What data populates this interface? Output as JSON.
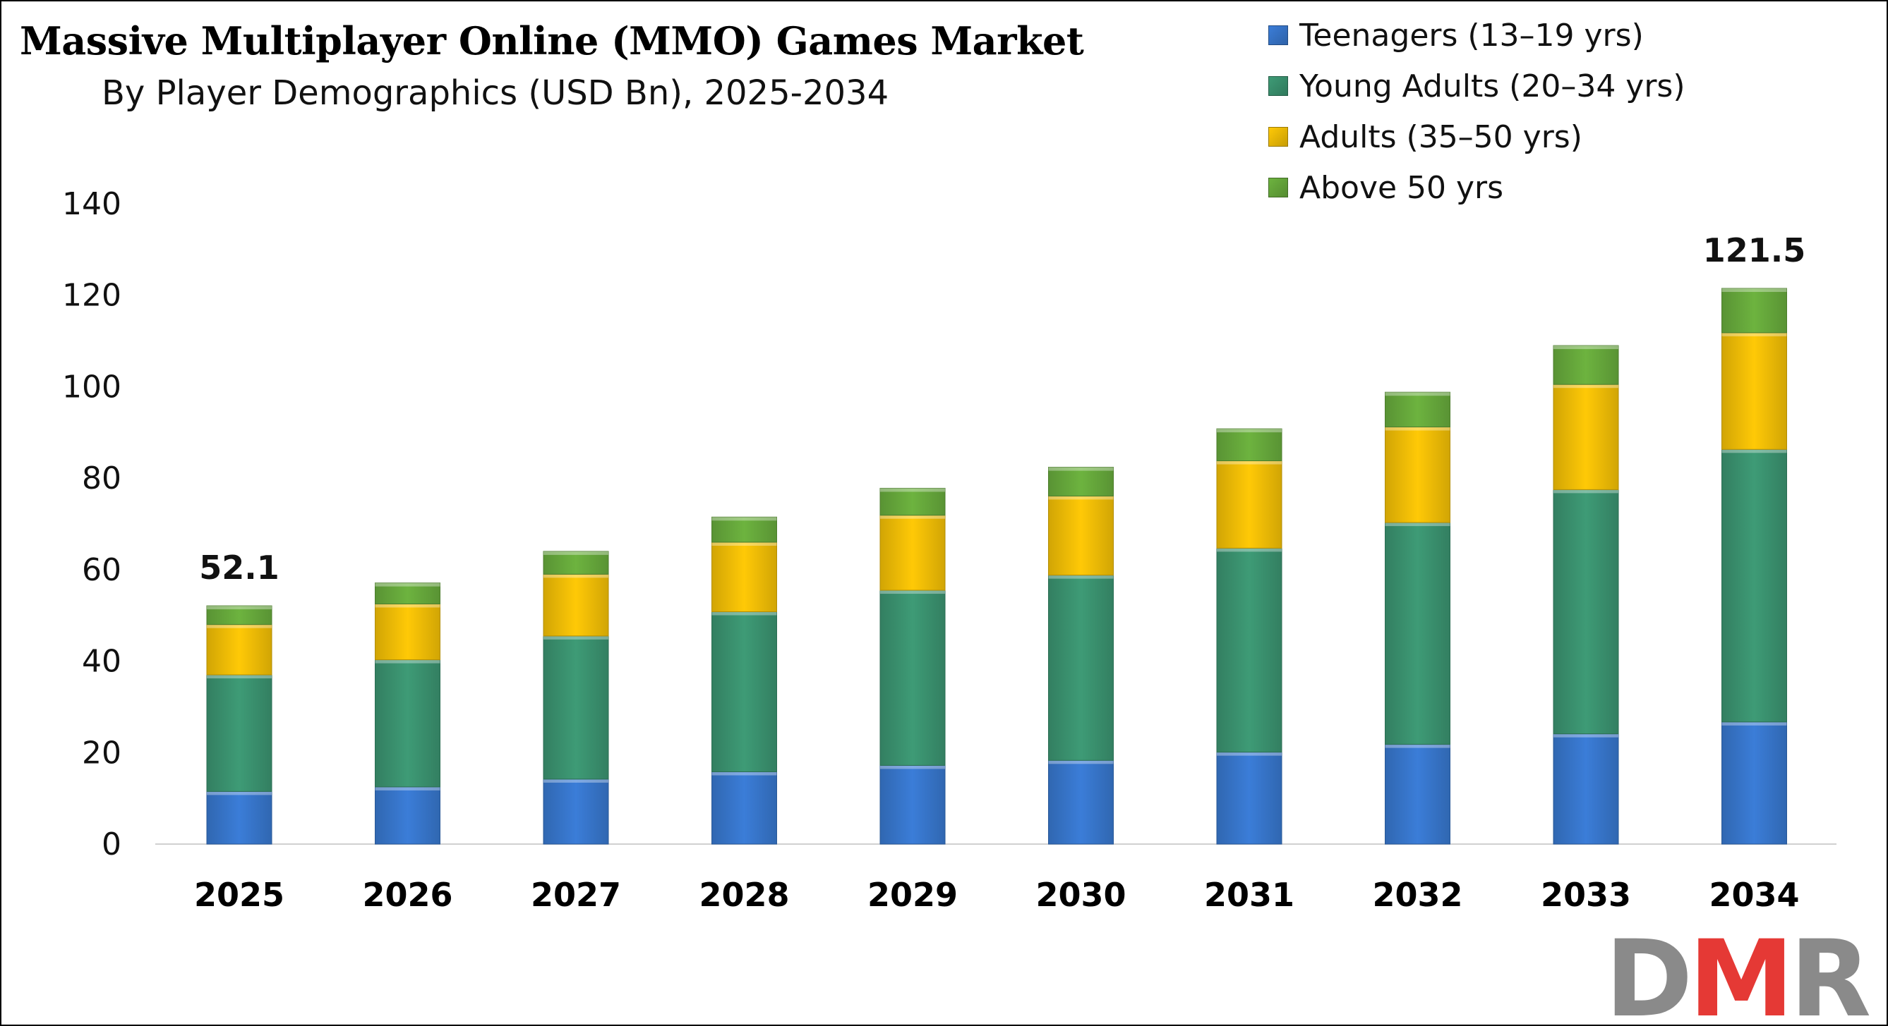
{
  "chart_data": {
    "type": "bar",
    "stacked": true,
    "title": "Massive Multiplayer Online (MMO) Games Market",
    "subtitle": "By Player Demographics (USD Bn), 2025-2034",
    "categories": [
      "2025",
      "2026",
      "2027",
      "2028",
      "2029",
      "2030",
      "2031",
      "2032",
      "2033",
      "2034"
    ],
    "series": [
      {
        "name": "Teenagers (13–19 yrs)",
        "color": "#3B7DD8",
        "values": [
          11.5,
          12.5,
          14.2,
          15.8,
          17.2,
          18.3,
          20.1,
          21.8,
          24.1,
          26.7
        ]
      },
      {
        "name": "Young Adults (20–34 yrs)",
        "color": "#3E9B76",
        "values": [
          25.5,
          27.8,
          31.3,
          35.0,
          38.3,
          40.5,
          44.6,
          48.5,
          53.4,
          59.6
        ]
      },
      {
        "name": "Adults (35–50 yrs)",
        "color": "#FFC906",
        "values": [
          11.0,
          12.2,
          13.5,
          15.2,
          16.4,
          17.3,
          19.1,
          20.9,
          23.0,
          25.5
        ]
      },
      {
        "name": "Above 50 yrs",
        "color": "#6DB33F",
        "values": [
          4.1,
          4.6,
          5.0,
          5.5,
          5.9,
          6.3,
          7.0,
          7.6,
          8.5,
          9.7
        ]
      }
    ],
    "total_labels": [
      {
        "category": "2025",
        "text": "52.1"
      },
      {
        "category": "2034",
        "text": "121.5"
      }
    ],
    "ylim": [
      0,
      140
    ],
    "yticks": [
      0,
      20,
      40,
      60,
      80,
      100,
      120,
      140
    ],
    "xlabel": "",
    "ylabel": "",
    "grid": false,
    "legend_position": "top-right"
  },
  "logo": {
    "text": "DMR",
    "colors": {
      "d": "#8A8A8A",
      "m": "#E53935",
      "r": "#8A8A8A"
    }
  }
}
